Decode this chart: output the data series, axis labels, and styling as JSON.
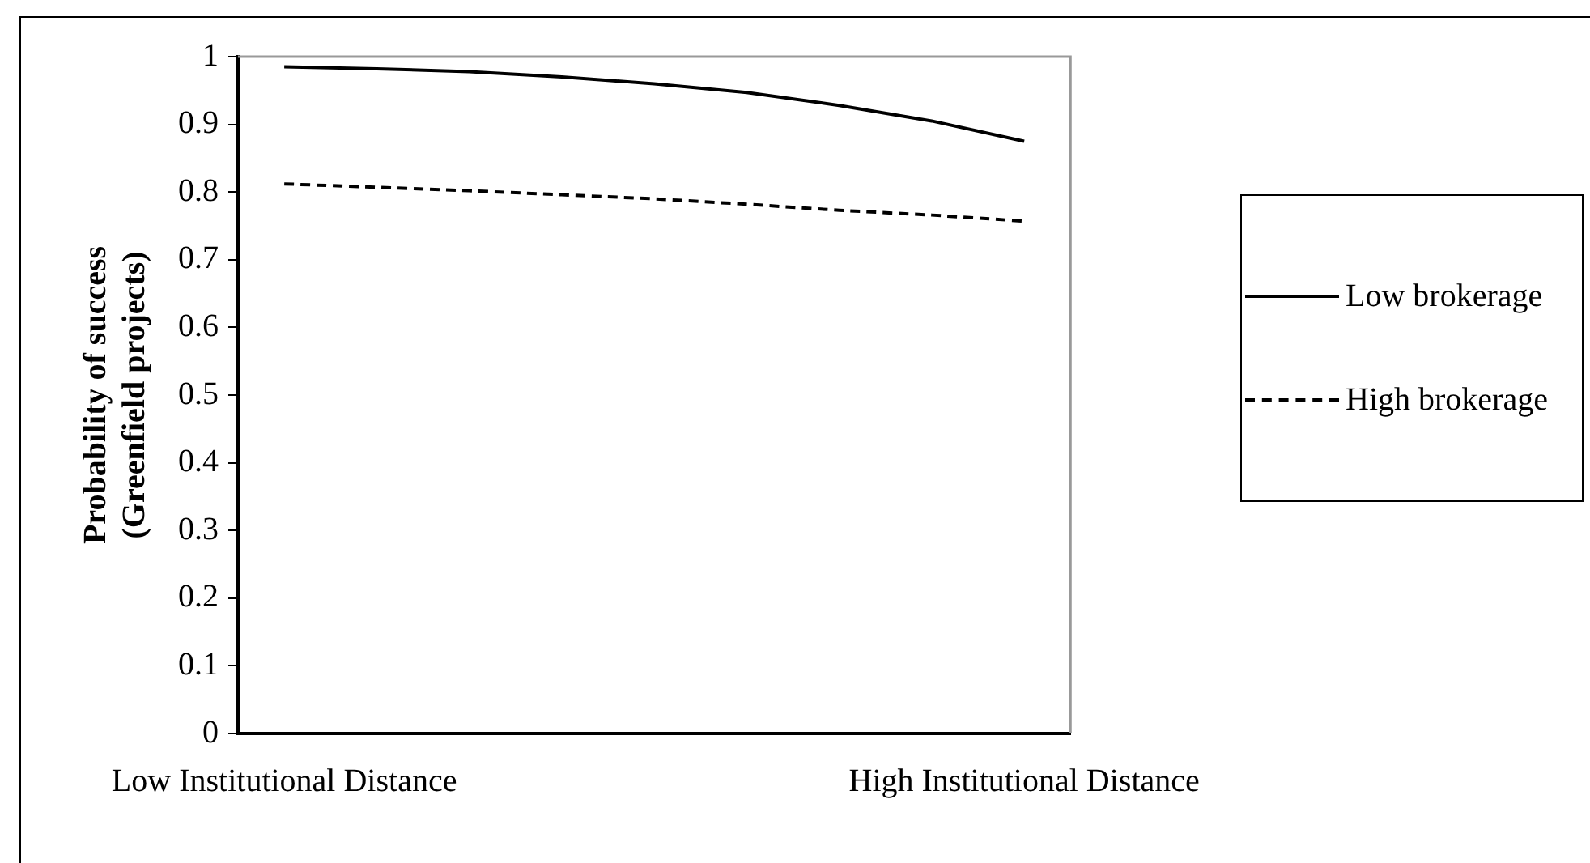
{
  "chart_data": {
    "type": "line",
    "ylabel": "Probability of success\n(Greenfield projects)",
    "categories": [
      "Low Institutional Distance",
      null,
      null,
      null,
      null,
      null,
      null,
      null,
      "High Institutional Distance"
    ],
    "series": [
      {
        "name": "Low brokerage",
        "color": "#000000",
        "line_style": "solid",
        "values": [
          0.985,
          0.982,
          0.978,
          0.97,
          0.96,
          0.947,
          0.928,
          0.905,
          0.875
        ]
      },
      {
        "name": "High brokerage",
        "color": "#000000",
        "line_style": "dashed",
        "values": [
          0.812,
          0.807,
          0.802,
          0.796,
          0.79,
          0.782,
          0.773,
          0.766,
          0.757
        ]
      }
    ],
    "ylim": [
      0,
      1
    ],
    "yticks": [
      0,
      0.1,
      0.2,
      0.3,
      0.4,
      0.5,
      0.6,
      0.7,
      0.8,
      0.9,
      1
    ],
    "grid": false,
    "legend": "right",
    "marker": "none"
  }
}
